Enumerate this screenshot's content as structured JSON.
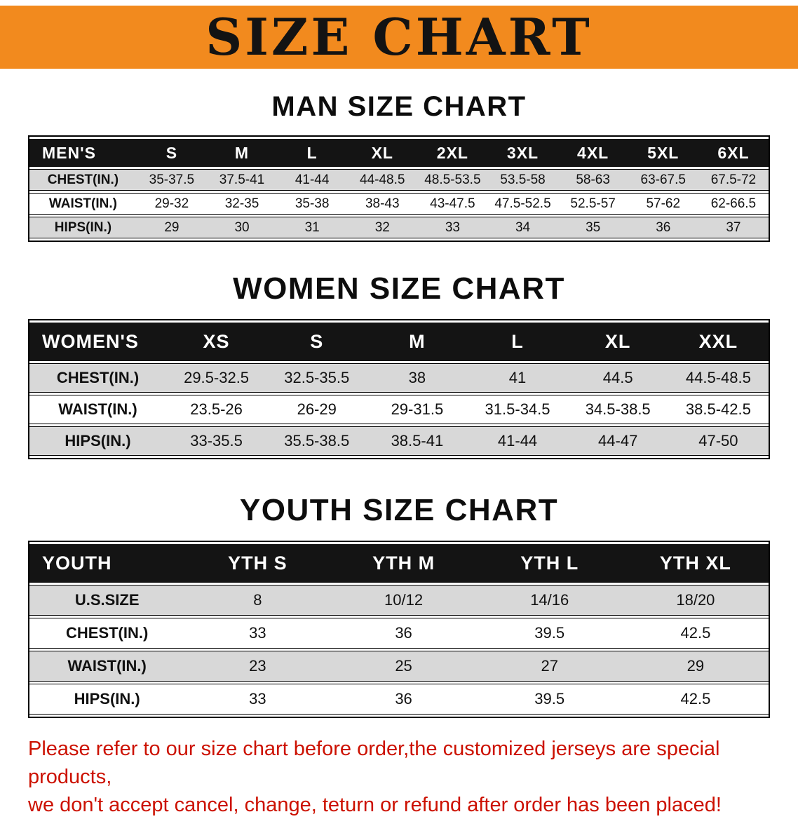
{
  "banner": {
    "title": "SIZE CHART"
  },
  "colors": {
    "banner_bg": "#f28a1e",
    "header_black": "#141414",
    "row_gray": "#d8d8d8",
    "footer_red": "#cc1100"
  },
  "sections": [
    {
      "title": "MAN SIZE CHART",
      "header": [
        "MEN'S",
        "S",
        "M",
        "L",
        "XL",
        "2XL",
        "3XL",
        "4XL",
        "5XL",
        "6XL"
      ],
      "rows": [
        [
          "CHEST(IN.)",
          "35-37.5",
          "37.5-41",
          "41-44",
          "44-48.5",
          "48.5-53.5",
          "53.5-58",
          "58-63",
          "63-67.5",
          "67.5-72"
        ],
        [
          "WAIST(IN.)",
          "29-32",
          "32-35",
          "35-38",
          "38-43",
          "43-47.5",
          "47.5-52.5",
          "52.5-57",
          "57-62",
          "62-66.5"
        ],
        [
          "HIPS(IN.)",
          "29",
          "30",
          "31",
          "32",
          "33",
          "34",
          "35",
          "36",
          "37"
        ]
      ]
    },
    {
      "title": "WOMEN SIZE CHART",
      "header": [
        "WOMEN'S",
        "XS",
        "S",
        "M",
        "L",
        "XL",
        "XXL"
      ],
      "rows": [
        [
          "CHEST(IN.)",
          "29.5-32.5",
          "32.5-35.5",
          "38",
          "41",
          "44.5",
          "44.5-48.5"
        ],
        [
          "WAIST(IN.)",
          "23.5-26",
          "26-29",
          "29-31.5",
          "31.5-34.5",
          "34.5-38.5",
          "38.5-42.5"
        ],
        [
          "HIPS(IN.)",
          "33-35.5",
          "35.5-38.5",
          "38.5-41",
          "41-44",
          "44-47",
          "47-50"
        ]
      ]
    },
    {
      "title": "YOUTH SIZE CHART",
      "header": [
        "YOUTH",
        "YTH S",
        "YTH M",
        "YTH L",
        "YTH XL"
      ],
      "rows": [
        [
          "U.S.SIZE",
          "8",
          "10/12",
          "14/16",
          "18/20"
        ],
        [
          "CHEST(IN.)",
          "33",
          "36",
          "39.5",
          "42.5"
        ],
        [
          "WAIST(IN.)",
          "23",
          "25",
          "27",
          "29"
        ],
        [
          "HIPS(IN.)",
          "33",
          "36",
          "39.5",
          "42.5"
        ]
      ]
    }
  ],
  "footer": {
    "line1": "Please refer to our size chart before order,the customized jerseys are special products,",
    "line2": "we don't accept cancel, change, teturn or refund after order has been placed!"
  }
}
